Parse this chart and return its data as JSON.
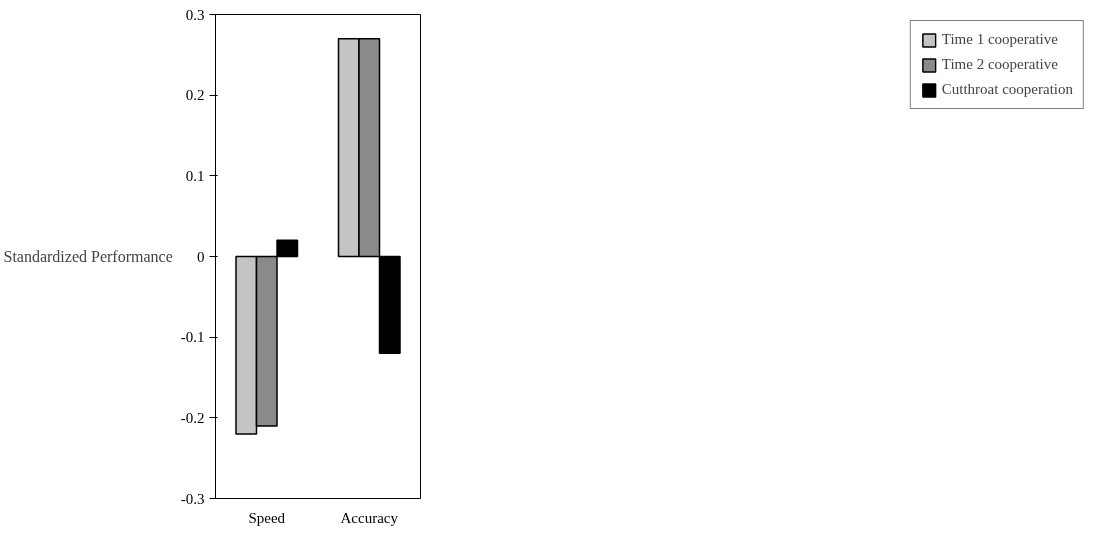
{
  "chart_data": {
    "type": "bar",
    "ylabel": "Standardized Performance",
    "categories": [
      "Speed",
      "Accuracy"
    ],
    "series": [
      {
        "name": "Time 1 cooperative",
        "color": "#c4c4c4",
        "values": [
          -0.22,
          0.27
        ]
      },
      {
        "name": "Time 2 cooperative",
        "color": "#8a8a8a",
        "values": [
          -0.21,
          0.27
        ]
      },
      {
        "name": "Cutthroat cooperation",
        "color": "#000000",
        "values": [
          0.02,
          -0.12
        ]
      }
    ],
    "ylim": [
      -0.3,
      0.3
    ],
    "yticks": [
      -0.3,
      -0.2,
      -0.1,
      0,
      0.1,
      0.2,
      0.3
    ],
    "grid": false,
    "legend": "right"
  }
}
